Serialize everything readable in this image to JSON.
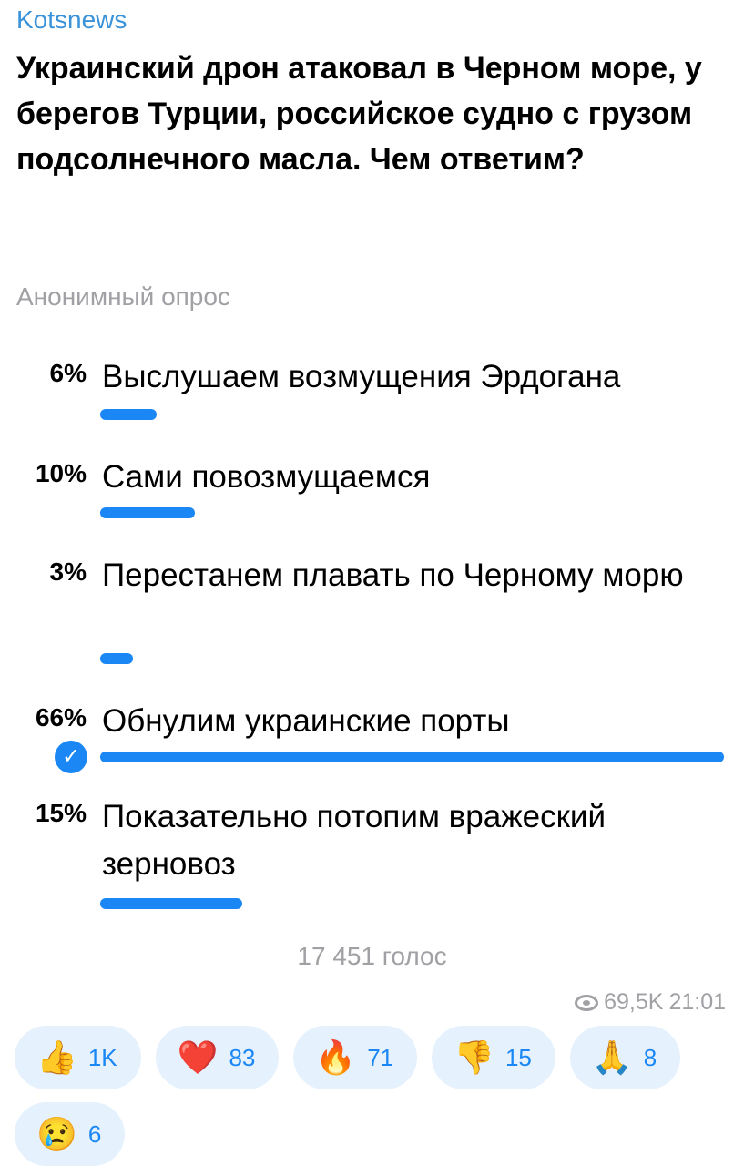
{
  "channel": "Kotsnews",
  "title": "Украинский дрон атаковал в Черном море, у берегов Турции, российское судно с грузом подсолнечного масла. Чем ответим?",
  "poll_type": "Анонимный опрос",
  "accent_color": "#1a87f5",
  "options": [
    {
      "percent": 6,
      "percent_label": "6%",
      "text": "Выслушаем возмущения Эрдогана",
      "chosen": false
    },
    {
      "percent": 10,
      "percent_label": "10%",
      "text": "Сами повозмущаемся",
      "chosen": false
    },
    {
      "percent": 3,
      "percent_label": "3%",
      "text": "Перестанем плавать по Черному морю",
      "chosen": false
    },
    {
      "percent": 66,
      "percent_label": "66%",
      "text": "Обнулим украинские порты",
      "chosen": true
    },
    {
      "percent": 15,
      "percent_label": "15%",
      "text": "Показательно потопим вражеский зерновоз",
      "chosen": false
    }
  ],
  "votes": "17 451 голос",
  "views": "69,5K",
  "time": "21:01",
  "reactions": [
    {
      "emoji": "👍",
      "icon": "thumbs-up",
      "count": "1K"
    },
    {
      "emoji": "❤️",
      "icon": "heart",
      "count": "83"
    },
    {
      "emoji": "🔥",
      "icon": "fire",
      "count": "71"
    },
    {
      "emoji": "👎",
      "icon": "thumbs-down",
      "count": "15"
    },
    {
      "emoji": "🙏",
      "icon": "praying-hands",
      "count": "8"
    },
    {
      "emoji": "😢",
      "icon": "crying-face",
      "count": "6"
    }
  ]
}
